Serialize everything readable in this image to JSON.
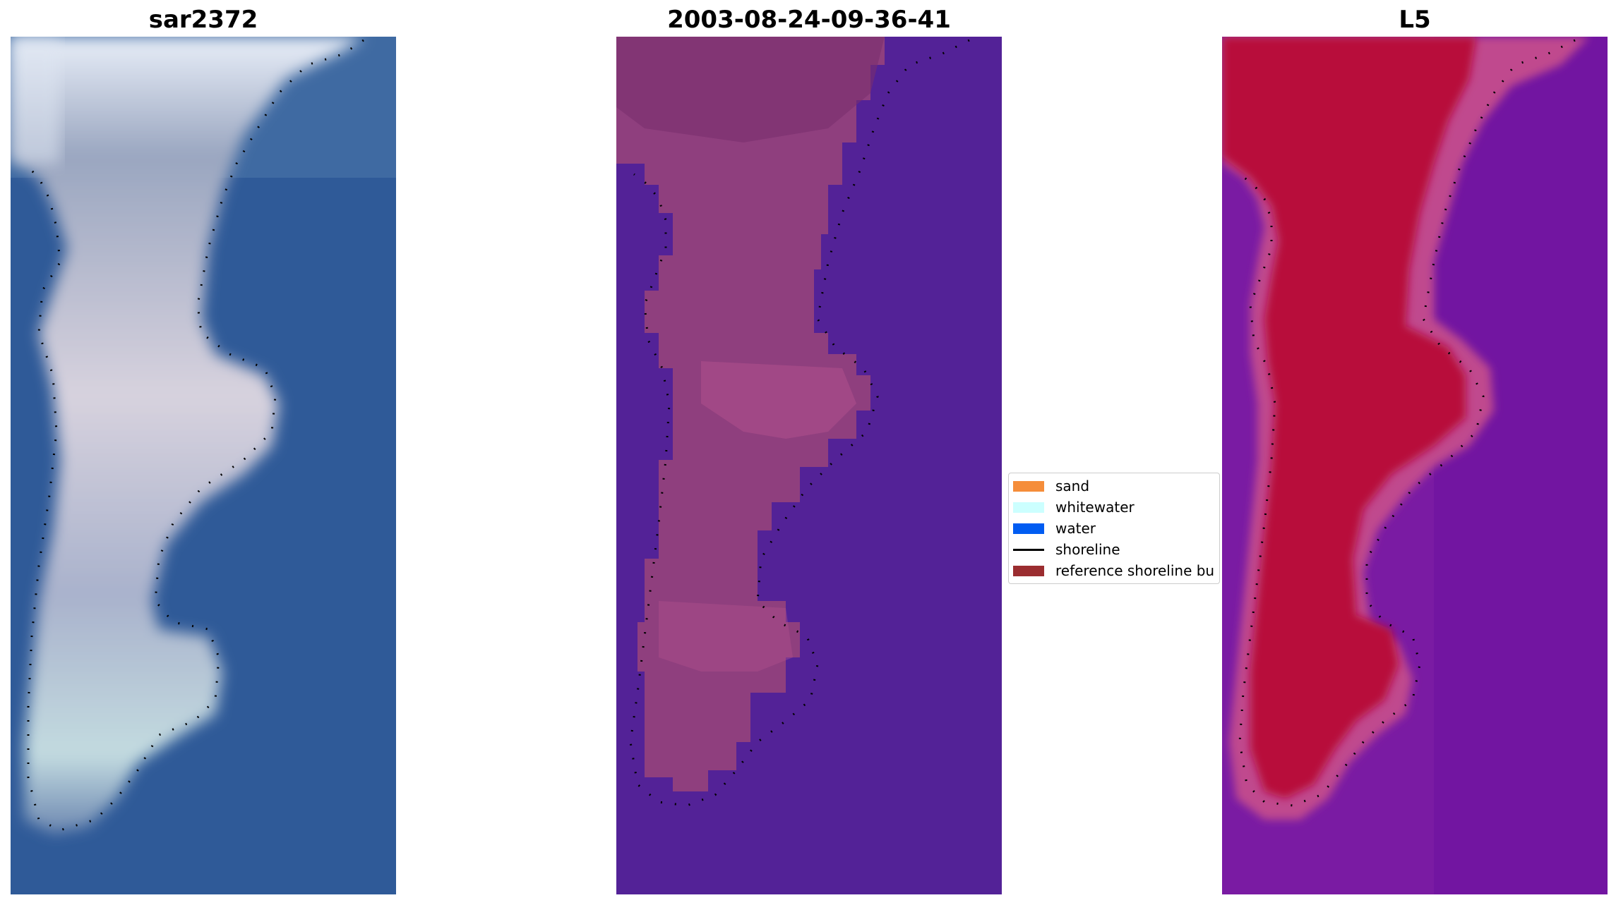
{
  "panels": [
    {
      "title": "sar2372"
    },
    {
      "title": "2003-08-24-09-36-41"
    },
    {
      "title": "L5"
    }
  ],
  "legend": {
    "items": [
      {
        "label": "sand",
        "color": "#f58d3a",
        "kind": "patch"
      },
      {
        "label": "whitewater",
        "color": "#ccffff",
        "kind": "patch"
      },
      {
        "label": "water",
        "color": "#005cf2",
        "kind": "patch"
      },
      {
        "label": "shoreline",
        "color": "#000000",
        "kind": "line"
      },
      {
        "label": "reference shoreline bu",
        "color": "#9b2d30",
        "kind": "patch"
      }
    ]
  },
  "colors": {
    "rgb_water": "#2f5a98",
    "rgb_sand": "#b8c4d8",
    "class_water": "#532297",
    "class_land": "#8f3f7e",
    "index_water": "#7a1ba3",
    "index_land": "#b8093b"
  }
}
